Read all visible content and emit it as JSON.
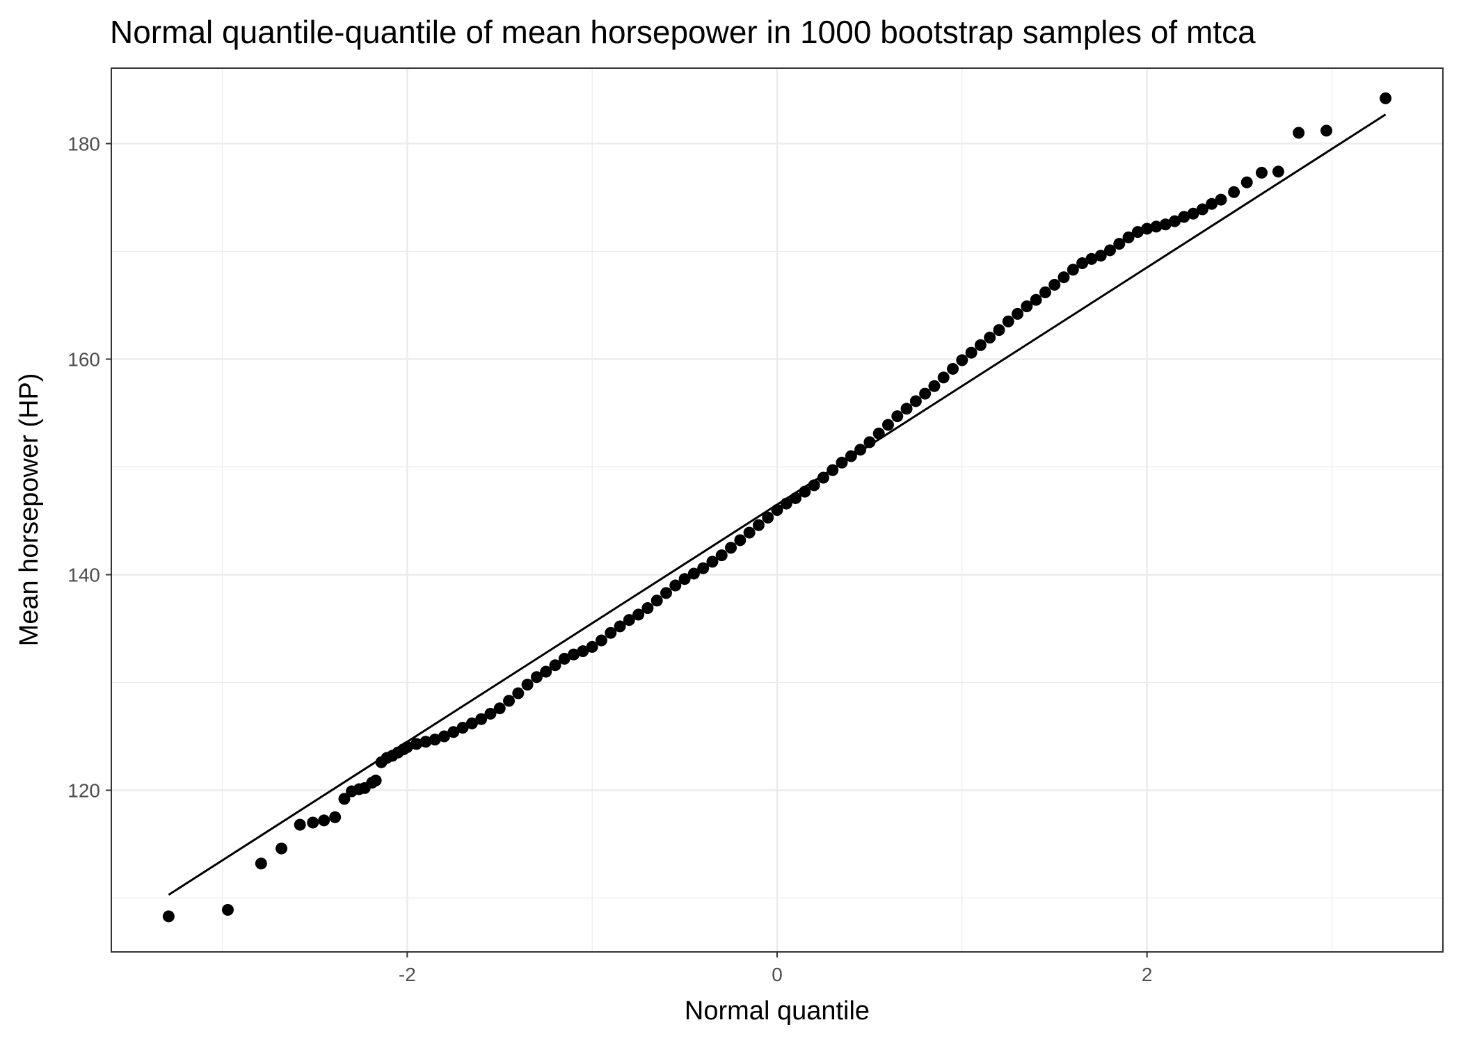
{
  "chart_data": {
    "type": "scatter",
    "title": "Normal quantile-quantile of mean horsepower in 1000 bootstrap samples of mtca",
    "xlabel": "Normal quantile",
    "ylabel": "Mean horsepower (HP)",
    "xlim": [
      -3.6,
      3.6
    ],
    "ylim": [
      105,
      187
    ],
    "x_ticks": [
      -2,
      0,
      2
    ],
    "x_tick_labels": [
      "-2",
      "0",
      "2"
    ],
    "y_ticks": [
      120,
      140,
      160,
      180
    ],
    "y_tick_labels": [
      "120",
      "140",
      "160",
      "180"
    ],
    "grid": true,
    "legend": "none",
    "colors": {
      "points": "#000000",
      "line": "#000000",
      "grid": "#ebebeb",
      "panel_border": "#333333"
    },
    "reference_line": {
      "x": [
        -3.29,
        3.29
      ],
      "y": [
        110.3,
        182.7
      ]
    },
    "points": [
      [
        -3.29,
        108.3
      ],
      [
        -2.97,
        108.9
      ],
      [
        -2.79,
        113.2
      ],
      [
        -2.68,
        114.6
      ],
      [
        -2.58,
        116.8
      ],
      [
        -2.51,
        117.0
      ],
      [
        -2.45,
        117.2
      ],
      [
        -2.39,
        117.5
      ],
      [
        -2.34,
        119.2
      ],
      [
        -2.3,
        119.9
      ],
      [
        -2.26,
        120.1
      ],
      [
        -2.23,
        120.2
      ],
      [
        -2.19,
        120.7
      ],
      [
        -2.17,
        120.9
      ],
      [
        -2.14,
        122.6
      ],
      [
        -2.11,
        123.0
      ],
      [
        -2.08,
        123.2
      ],
      [
        -2.05,
        123.5
      ],
      [
        -2.02,
        123.8
      ],
      [
        -2.0,
        124.0
      ],
      [
        -1.95,
        124.3
      ],
      [
        -1.9,
        124.5
      ],
      [
        -1.85,
        124.7
      ],
      [
        -1.8,
        125.0
      ],
      [
        -1.75,
        125.4
      ],
      [
        -1.7,
        125.8
      ],
      [
        -1.65,
        126.2
      ],
      [
        -1.6,
        126.6
      ],
      [
        -1.55,
        127.1
      ],
      [
        -1.5,
        127.6
      ],
      [
        -1.45,
        128.3
      ],
      [
        -1.4,
        129.0
      ],
      [
        -1.35,
        129.8
      ],
      [
        -1.3,
        130.5
      ],
      [
        -1.25,
        131.0
      ],
      [
        -1.2,
        131.6
      ],
      [
        -1.15,
        132.2
      ],
      [
        -1.1,
        132.6
      ],
      [
        -1.05,
        132.9
      ],
      [
        -1.0,
        133.3
      ],
      [
        -0.95,
        133.9
      ],
      [
        -0.9,
        134.6
      ],
      [
        -0.85,
        135.2
      ],
      [
        -0.8,
        135.8
      ],
      [
        -0.75,
        136.3
      ],
      [
        -0.7,
        136.9
      ],
      [
        -0.65,
        137.6
      ],
      [
        -0.6,
        138.3
      ],
      [
        -0.55,
        139.0
      ],
      [
        -0.5,
        139.6
      ],
      [
        -0.45,
        140.1
      ],
      [
        -0.4,
        140.6
      ],
      [
        -0.35,
        141.2
      ],
      [
        -0.3,
        141.8
      ],
      [
        -0.25,
        142.5
      ],
      [
        -0.2,
        143.2
      ],
      [
        -0.15,
        143.9
      ],
      [
        -0.1,
        144.6
      ],
      [
        -0.05,
        145.3
      ],
      [
        0.0,
        146.0
      ],
      [
        0.05,
        146.6
      ],
      [
        0.1,
        147.1
      ],
      [
        0.15,
        147.7
      ],
      [
        0.2,
        148.3
      ],
      [
        0.25,
        149.0
      ],
      [
        0.3,
        149.7
      ],
      [
        0.35,
        150.4
      ],
      [
        0.4,
        151.0
      ],
      [
        0.45,
        151.6
      ],
      [
        0.5,
        152.3
      ],
      [
        0.55,
        153.1
      ],
      [
        0.6,
        153.9
      ],
      [
        0.65,
        154.7
      ],
      [
        0.7,
        155.4
      ],
      [
        0.75,
        156.1
      ],
      [
        0.8,
        156.8
      ],
      [
        0.85,
        157.5
      ],
      [
        0.9,
        158.3
      ],
      [
        0.95,
        159.1
      ],
      [
        1.0,
        159.9
      ],
      [
        1.05,
        160.6
      ],
      [
        1.1,
        161.3
      ],
      [
        1.15,
        162.0
      ],
      [
        1.2,
        162.7
      ],
      [
        1.25,
        163.5
      ],
      [
        1.3,
        164.2
      ],
      [
        1.35,
        164.9
      ],
      [
        1.4,
        165.5
      ],
      [
        1.45,
        166.2
      ],
      [
        1.5,
        166.9
      ],
      [
        1.55,
        167.6
      ],
      [
        1.6,
        168.3
      ],
      [
        1.65,
        168.9
      ],
      [
        1.7,
        169.3
      ],
      [
        1.75,
        169.6
      ],
      [
        1.8,
        170.1
      ],
      [
        1.85,
        170.7
      ],
      [
        1.9,
        171.3
      ],
      [
        1.95,
        171.8
      ],
      [
        2.0,
        172.1
      ],
      [
        2.05,
        172.3
      ],
      [
        2.1,
        172.5
      ],
      [
        2.15,
        172.8
      ],
      [
        2.2,
        173.2
      ],
      [
        2.25,
        173.5
      ],
      [
        2.3,
        173.9
      ],
      [
        2.35,
        174.4
      ],
      [
        2.4,
        174.8
      ],
      [
        2.47,
        175.5
      ],
      [
        2.54,
        176.4
      ],
      [
        2.62,
        177.3
      ],
      [
        2.71,
        177.4
      ],
      [
        2.82,
        181.0
      ],
      [
        2.97,
        181.2
      ],
      [
        3.29,
        184.2
      ]
    ]
  }
}
